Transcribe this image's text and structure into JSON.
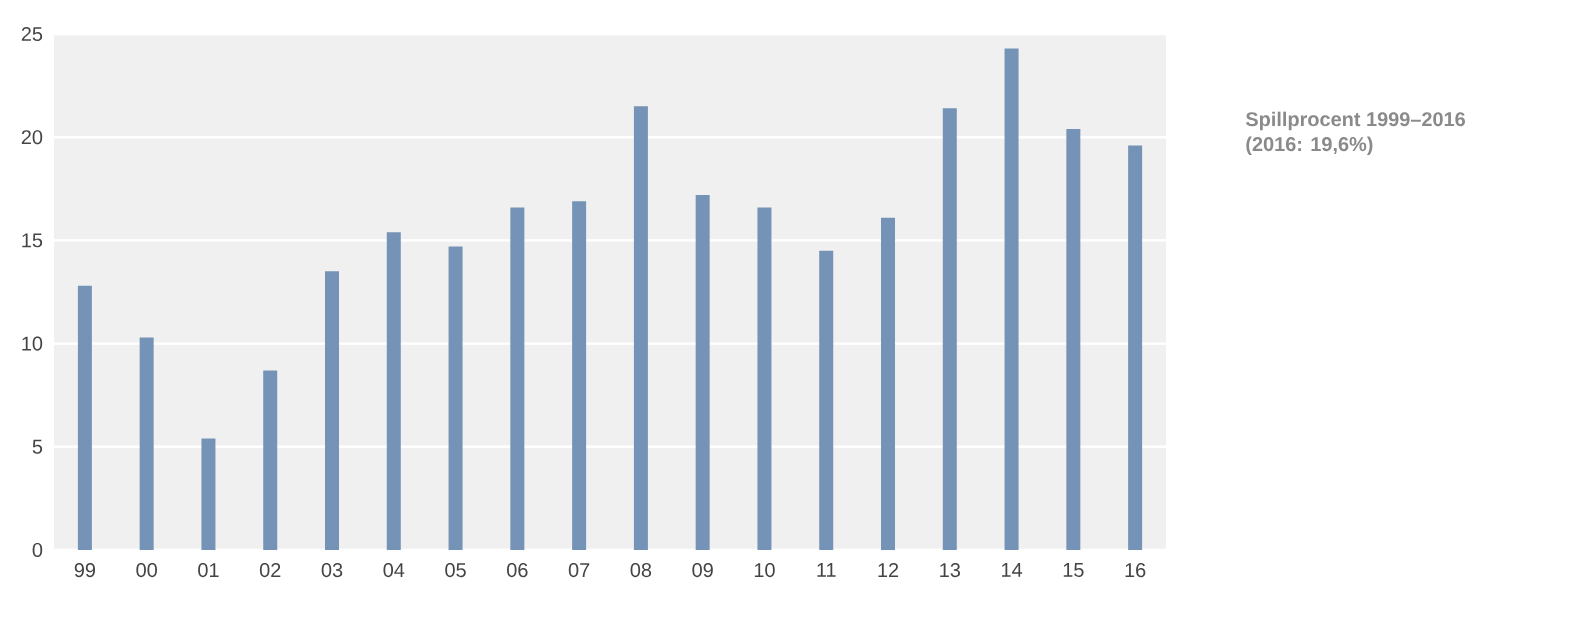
{
  "chart_data": {
    "type": "bar",
    "title": "Spillprocent 1999–2016",
    "subtitle": "(2016: 19,6%)",
    "categories": [
      "99",
      "00",
      "01",
      "02",
      "03",
      "04",
      "05",
      "06",
      "07",
      "08",
      "09",
      "10",
      "11",
      "12",
      "13",
      "14",
      "15",
      "16"
    ],
    "values": [
      12.8,
      10.3,
      5.4,
      8.7,
      13.5,
      15.4,
      14.7,
      16.6,
      16.9,
      21.5,
      17.2,
      16.6,
      14.5,
      16.1,
      21.4,
      24.3,
      20.4,
      19.6
    ],
    "color": "#7593b6",
    "ylim": [
      0,
      25
    ],
    "yticks": [
      0,
      5,
      10,
      15,
      20,
      25
    ],
    "grid": "y"
  }
}
